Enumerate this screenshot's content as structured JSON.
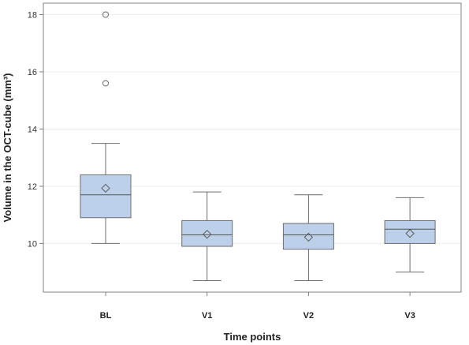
{
  "chart_data": {
    "type": "boxplot",
    "title": "",
    "xlabel": "Time points",
    "ylabel": "Volume in the OCT-cube (mm³)",
    "ylim": [
      8.3,
      18.4
    ],
    "yticks": [
      10,
      12,
      14,
      16,
      18
    ],
    "grid": true,
    "colors": {
      "box_fill": "#bcd0ea",
      "box_stroke": "#6d6d6d"
    },
    "categories": [
      "BL",
      "V1",
      "V2",
      "V3"
    ],
    "boxes": [
      {
        "category": "BL",
        "whisker_low": 10.0,
        "q1": 10.9,
        "median": 11.7,
        "mean": 11.93,
        "q3": 12.4,
        "whisker_high": 13.5,
        "outliers": [
          15.6,
          18.0
        ]
      },
      {
        "category": "V1",
        "whisker_low": 8.7,
        "q1": 9.9,
        "median": 10.3,
        "mean": 10.32,
        "q3": 10.8,
        "whisker_high": 11.8,
        "outliers": []
      },
      {
        "category": "V2",
        "whisker_low": 8.7,
        "q1": 9.8,
        "median": 10.3,
        "mean": 10.22,
        "q3": 10.7,
        "whisker_high": 11.7,
        "outliers": []
      },
      {
        "category": "V3",
        "whisker_low": 9.0,
        "q1": 10.0,
        "median": 10.5,
        "mean": 10.35,
        "q3": 10.8,
        "whisker_high": 11.6,
        "outliers": []
      }
    ]
  }
}
